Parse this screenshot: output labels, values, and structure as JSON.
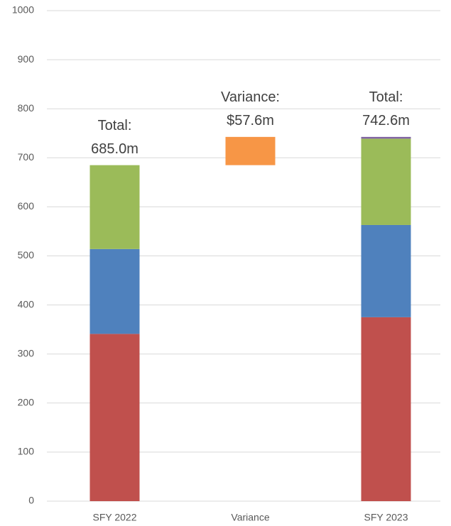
{
  "chart_data": {
    "type": "waterfall",
    "categories": [
      "SFY 2022",
      "Variance",
      "SFY 2023"
    ],
    "series": [
      {
        "color": "#c0504d",
        "values": [
          341,
          null,
          375
        ]
      },
      {
        "color": "#4f81bd",
        "values": [
          173,
          null,
          188
        ]
      },
      {
        "color": "#9bbb59",
        "values": [
          171,
          null,
          176
        ]
      },
      {
        "color": "#8064a2",
        "values": [
          null,
          null,
          3.6
        ]
      },
      {
        "color": "#f79646",
        "values": [
          null,
          57.6,
          null
        ]
      }
    ],
    "annotations": [
      [
        "Total:",
        "685.0m"
      ],
      [
        "Variance:",
        "$57.6m"
      ],
      [
        "Total:",
        "742.6m"
      ]
    ],
    "ylim": [
      0,
      1000
    ],
    "yticks": [
      0,
      100,
      200,
      300,
      400,
      500,
      600,
      700,
      800,
      900,
      1000
    ],
    "grid": true
  }
}
